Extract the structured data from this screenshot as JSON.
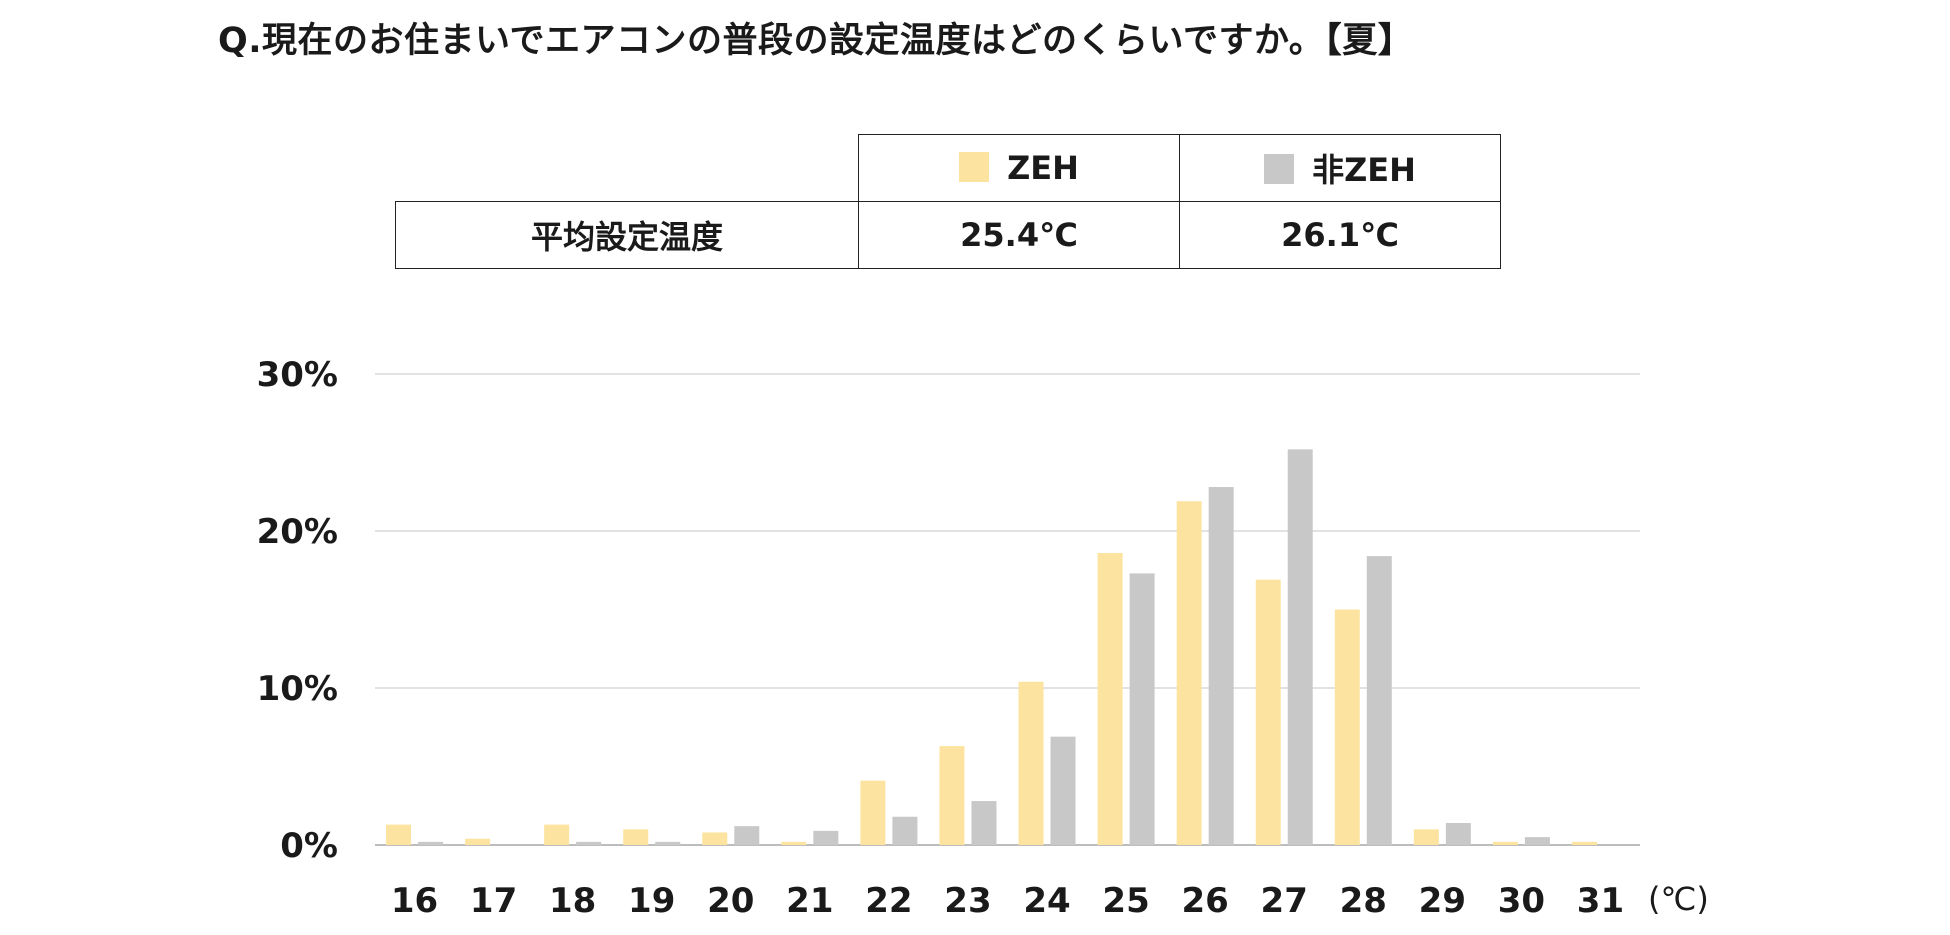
{
  "title": "Q.現在のお住まいでエアコンの普段の設定温度はどのくらいですか。【夏】",
  "summary_table": {
    "row_label": "平均設定温度",
    "columns": [
      {
        "name": "ZEH",
        "value": "25.4℃",
        "color": "#FCE4A0"
      },
      {
        "name": "非ZEH",
        "value": "26.1℃",
        "color": "#C8C8C8"
      }
    ]
  },
  "chart_data": {
    "type": "bar",
    "categories": [
      "16",
      "17",
      "18",
      "19",
      "20",
      "21",
      "22",
      "23",
      "24",
      "25",
      "26",
      "27",
      "28",
      "29",
      "30",
      "31"
    ],
    "x_unit_label": "(℃)",
    "y_ticks": [
      "0%",
      "10%",
      "20%",
      "30%"
    ],
    "ylim": [
      0,
      30
    ],
    "grid": true,
    "series": [
      {
        "name": "ZEH",
        "color": "#FCE4A0",
        "values": [
          1.3,
          0.4,
          1.3,
          1.0,
          0.8,
          0.2,
          4.1,
          6.3,
          10.4,
          18.6,
          21.9,
          16.9,
          15.0,
          1.0,
          0.2,
          0.2
        ]
      },
      {
        "name": "非ZEH",
        "color": "#C8C8C8",
        "values": [
          0.2,
          0.0,
          0.2,
          0.2,
          1.2,
          0.9,
          1.8,
          2.8,
          6.9,
          17.3,
          22.8,
          25.2,
          18.4,
          1.4,
          0.5,
          0.0
        ]
      }
    ]
  }
}
